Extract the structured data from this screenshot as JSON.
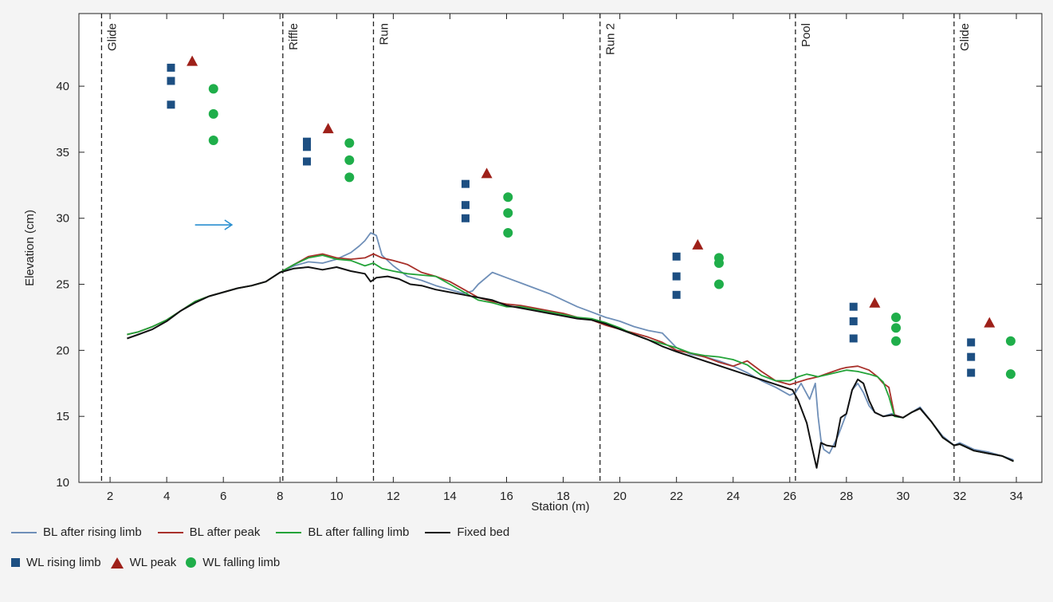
{
  "chart_data": {
    "type": "line",
    "xlabel": "Station (m)",
    "ylabel": "Elevation (cm)",
    "xlim": [
      0.9,
      34.9
    ],
    "ylim": [
      10,
      45.5
    ],
    "xticks": [
      2,
      4,
      6,
      8,
      10,
      12,
      14,
      16,
      18,
      20,
      22,
      24,
      26,
      28,
      30,
      32,
      34
    ],
    "yticks": [
      10,
      15,
      20,
      25,
      30,
      35,
      40
    ],
    "grid": false,
    "legend_position": "bottom",
    "zones": [
      {
        "label": "Glide",
        "x": 1.7
      },
      {
        "label": "Riffle",
        "x": 8.1
      },
      {
        "label": "Run",
        "x": 11.3
      },
      {
        "label": "Run 2",
        "x": 19.3
      },
      {
        "label": "Pool",
        "x": 26.2
      },
      {
        "label": "Glide",
        "x": 31.8
      }
    ],
    "zone_end": 31.8,
    "flow_arrow": {
      "x_start": 5.0,
      "x_end": 6.3,
      "y": 29.5,
      "color": "#2a8fd0"
    },
    "series": [
      {
        "name": "BL after rising limb",
        "color": "#6f8fb8",
        "x": [
          2.6,
          3.0,
          3.5,
          4.0,
          4.5,
          5.0,
          5.5,
          6.0,
          6.5,
          7.0,
          7.5,
          8.0,
          8.5,
          9.0,
          9.5,
          10.0,
          10.5,
          10.8,
          11.0,
          11.2,
          11.4,
          11.6,
          12.0,
          12.5,
          13.0,
          13.5,
          14.0,
          14.5,
          14.8,
          15.0,
          15.5,
          16.0,
          16.5,
          17.0,
          17.5,
          18.0,
          18.5,
          19.0,
          19.5,
          20.0,
          20.5,
          21.0,
          21.5,
          22.0,
          22.5,
          23.0,
          23.5,
          24.0,
          24.5,
          25.0,
          25.5,
          26.0,
          26.2,
          26.4,
          26.7,
          26.9,
          27.0,
          27.1,
          27.2,
          27.4,
          27.7,
          28.0,
          28.2,
          28.4,
          28.6,
          28.8,
          29.0,
          29.3,
          29.6,
          30.0,
          30.3,
          30.6,
          31.0,
          31.4,
          31.8,
          32.0,
          32.5,
          33.0,
          33.5,
          33.9
        ],
        "y": [
          21.2,
          21.4,
          21.8,
          22.3,
          23.0,
          23.7,
          24.1,
          24.4,
          24.7,
          24.9,
          25.2,
          25.9,
          26.4,
          26.7,
          26.6,
          26.9,
          27.4,
          27.9,
          28.3,
          28.9,
          28.7,
          27.2,
          26.4,
          25.6,
          25.3,
          24.9,
          24.6,
          24.3,
          24.5,
          25.0,
          25.9,
          25.5,
          25.1,
          24.7,
          24.3,
          23.8,
          23.3,
          22.9,
          22.5,
          22.2,
          21.8,
          21.5,
          21.3,
          20.2,
          19.7,
          19.5,
          19.2,
          18.8,
          18.3,
          17.7,
          17.2,
          16.6,
          16.8,
          17.5,
          16.3,
          17.5,
          15.0,
          13.2,
          12.5,
          12.2,
          13.5,
          15.2,
          17.0,
          17.5,
          16.8,
          15.8,
          15.3,
          15.0,
          15.2,
          14.9,
          15.3,
          15.7,
          14.6,
          13.5,
          12.8,
          13.0,
          12.5,
          12.3,
          12.0,
          11.7
        ]
      },
      {
        "name": "BL after peak",
        "color": "#a8302a",
        "x": [
          2.6,
          3.0,
          3.5,
          4.0,
          4.5,
          5.0,
          5.5,
          6.0,
          6.5,
          7.0,
          7.5,
          8.0,
          8.5,
          9.0,
          9.5,
          10.0,
          10.5,
          11.0,
          11.3,
          11.6,
          12.0,
          12.5,
          13.0,
          13.5,
          14.0,
          14.5,
          15.0,
          15.5,
          16.0,
          16.5,
          17.0,
          17.5,
          18.0,
          18.5,
          19.0,
          19.5,
          20.0,
          20.5,
          21.0,
          21.5,
          22.0,
          22.5,
          23.0,
          23.5,
          24.0,
          24.5,
          25.0,
          25.5,
          26.0,
          26.3,
          26.6,
          27.0,
          27.4,
          27.8,
          28.0,
          28.4,
          28.8,
          29.1,
          29.3,
          29.5,
          29.7,
          30.0,
          30.3,
          30.6,
          31.0,
          31.4,
          31.8,
          32.0,
          32.5,
          33.0,
          33.5,
          33.9
        ],
        "y": [
          21.2,
          21.4,
          21.8,
          22.3,
          23.0,
          23.7,
          24.1,
          24.4,
          24.7,
          24.9,
          25.2,
          25.9,
          26.5,
          27.1,
          27.3,
          27.0,
          26.9,
          27.0,
          27.3,
          27.0,
          26.8,
          26.5,
          25.9,
          25.6,
          25.2,
          24.6,
          24.0,
          23.7,
          23.5,
          23.4,
          23.2,
          23.0,
          22.8,
          22.5,
          22.3,
          21.9,
          21.6,
          21.3,
          21.0,
          20.6,
          20.0,
          19.8,
          19.5,
          19.1,
          18.8,
          19.2,
          18.4,
          17.7,
          17.4,
          17.6,
          17.8,
          18.0,
          18.3,
          18.6,
          18.7,
          18.8,
          18.5,
          18.0,
          17.5,
          17.2,
          15.1,
          14.9,
          15.3,
          15.6,
          14.6,
          13.4,
          12.8,
          12.9,
          12.4,
          12.2,
          12.0,
          11.6
        ]
      },
      {
        "name": "BL after falling limb",
        "color": "#23a338",
        "x": [
          2.6,
          3.0,
          3.5,
          4.0,
          4.5,
          5.0,
          5.5,
          6.0,
          6.5,
          7.0,
          7.5,
          8.0,
          8.5,
          9.0,
          9.5,
          10.0,
          10.5,
          11.0,
          11.3,
          11.6,
          12.0,
          12.5,
          13.0,
          13.5,
          14.0,
          14.5,
          15.0,
          15.5,
          16.0,
          16.5,
          17.0,
          17.5,
          18.0,
          18.5,
          19.0,
          19.5,
          20.0,
          20.5,
          21.0,
          21.5,
          22.0,
          22.5,
          23.0,
          23.5,
          24.0,
          24.5,
          25.0,
          25.5,
          26.0,
          26.3,
          26.6,
          27.0,
          27.4,
          27.8,
          28.0,
          28.4,
          28.8,
          29.1,
          29.3,
          29.5,
          29.7,
          30.0,
          30.3,
          30.6,
          31.0,
          31.4,
          31.8,
          32.0,
          32.5,
          33.0,
          33.5,
          33.9
        ],
        "y": [
          21.2,
          21.4,
          21.8,
          22.3,
          23.0,
          23.7,
          24.1,
          24.4,
          24.7,
          24.9,
          25.2,
          25.9,
          26.5,
          27.0,
          27.2,
          26.9,
          26.8,
          26.4,
          26.6,
          26.2,
          26.0,
          25.8,
          25.7,
          25.6,
          25.0,
          24.4,
          23.8,
          23.6,
          23.3,
          23.3,
          23.1,
          22.9,
          22.7,
          22.5,
          22.4,
          22.1,
          21.7,
          21.2,
          20.8,
          20.5,
          20.2,
          19.8,
          19.6,
          19.5,
          19.3,
          18.9,
          18.1,
          17.7,
          17.7,
          18.0,
          18.2,
          18.0,
          18.2,
          18.4,
          18.5,
          18.4,
          18.2,
          18.0,
          17.6,
          16.5,
          15.0,
          14.9,
          15.3,
          15.6,
          14.6,
          13.4,
          12.8,
          12.9,
          12.4,
          12.2,
          12.0,
          11.6
        ]
      },
      {
        "name": "Fixed bed",
        "color": "#111111",
        "x": [
          2.6,
          3.0,
          3.5,
          4.0,
          4.5,
          5.0,
          5.5,
          6.0,
          6.5,
          7.0,
          7.5,
          8.0,
          8.5,
          9.0,
          9.5,
          10.0,
          10.5,
          11.0,
          11.2,
          11.4,
          11.8,
          12.2,
          12.6,
          13.0,
          13.5,
          14.0,
          14.5,
          15.0,
          15.5,
          16.0,
          16.5,
          17.0,
          17.5,
          18.0,
          18.5,
          19.0,
          19.5,
          20.0,
          20.5,
          21.0,
          21.5,
          22.0,
          26.1,
          26.3,
          26.6,
          26.8,
          26.95,
          27.1,
          27.3,
          27.6,
          27.8,
          28.0,
          28.2,
          28.4,
          28.6,
          28.8,
          29.0,
          29.3,
          29.6,
          30.0,
          30.3,
          30.6,
          31.0,
          31.4,
          31.8,
          32.0,
          32.5,
          33.0,
          33.5,
          33.9
        ],
        "y": [
          20.9,
          21.2,
          21.6,
          22.2,
          23.0,
          23.6,
          24.1,
          24.4,
          24.7,
          24.9,
          25.2,
          25.9,
          26.2,
          26.3,
          26.1,
          26.3,
          26.0,
          25.8,
          25.2,
          25.5,
          25.6,
          25.4,
          25.0,
          24.9,
          24.6,
          24.4,
          24.2,
          24.0,
          23.8,
          23.4,
          23.2,
          23.0,
          22.8,
          22.6,
          22.4,
          22.3,
          22.0,
          21.6,
          21.2,
          20.8,
          20.3,
          19.9,
          17.0,
          16.2,
          14.5,
          12.5,
          11.1,
          13.0,
          12.8,
          12.7,
          14.9,
          15.2,
          17.0,
          17.8,
          17.5,
          16.2,
          15.3,
          15.0,
          15.1,
          14.9,
          15.3,
          15.6,
          14.6,
          13.4,
          12.8,
          12.9,
          12.4,
          12.2,
          12.0,
          11.6
        ]
      }
    ],
    "markers": [
      {
        "name": "WL rising limb",
        "shape": "square",
        "color": "#1d4f82",
        "points": [
          [
            4.15,
            41.4
          ],
          [
            4.15,
            40.4
          ],
          [
            4.15,
            38.6
          ],
          [
            8.95,
            35.8
          ],
          [
            8.95,
            35.4
          ],
          [
            8.95,
            34.3
          ],
          [
            14.55,
            32.6
          ],
          [
            14.55,
            31.0
          ],
          [
            14.55,
            30.0
          ],
          [
            22.0,
            27.1
          ],
          [
            22.0,
            25.6
          ],
          [
            22.0,
            24.2
          ],
          [
            28.25,
            23.3
          ],
          [
            28.25,
            22.2
          ],
          [
            28.25,
            20.9
          ],
          [
            32.4,
            20.6
          ],
          [
            32.4,
            19.5
          ],
          [
            32.4,
            18.3
          ]
        ]
      },
      {
        "name": "WL peak",
        "shape": "triangle",
        "color": "#9e2019",
        "points": [
          [
            4.9,
            41.9
          ],
          [
            9.7,
            36.8
          ],
          [
            15.3,
            33.4
          ],
          [
            22.75,
            28.0
          ],
          [
            29.0,
            23.6
          ],
          [
            33.05,
            22.1
          ]
        ]
      },
      {
        "name": "WL falling limb",
        "shape": "circle",
        "color": "#1fae4a",
        "points": [
          [
            5.65,
            39.8
          ],
          [
            5.65,
            37.9
          ],
          [
            5.65,
            35.9
          ],
          [
            10.45,
            35.7
          ],
          [
            10.45,
            34.4
          ],
          [
            10.45,
            33.1
          ],
          [
            16.05,
            31.6
          ],
          [
            16.05,
            30.4
          ],
          [
            16.05,
            28.9
          ],
          [
            23.5,
            27.0
          ],
          [
            23.5,
            26.6
          ],
          [
            23.5,
            25.0
          ],
          [
            29.75,
            22.5
          ],
          [
            29.75,
            21.7
          ],
          [
            29.75,
            20.7
          ],
          [
            33.8,
            20.7
          ],
          [
            33.8,
            18.2
          ]
        ]
      }
    ]
  }
}
